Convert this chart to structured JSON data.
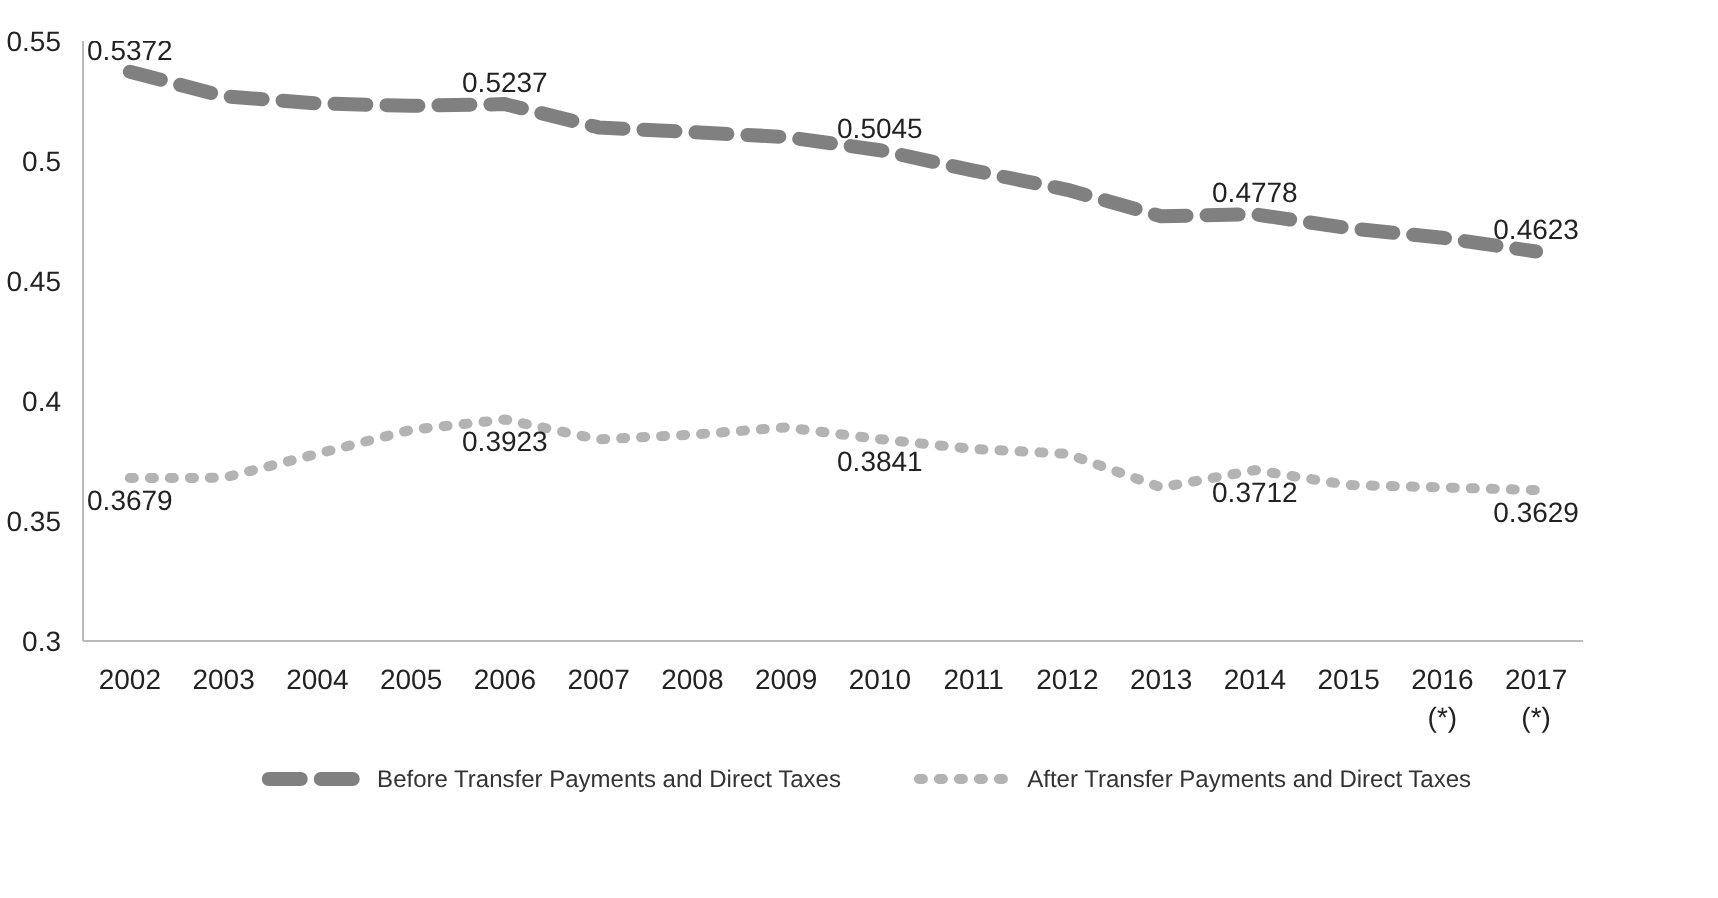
{
  "chart_data": {
    "type": "line",
    "categories": [
      "2002",
      "2003",
      "2004",
      "2005",
      "2006",
      "2007",
      "2008",
      "2009",
      "2010",
      "2011",
      "2012",
      "2013",
      "2014",
      "2015",
      "2016\n(*)",
      "2017\n(*)"
    ],
    "ylim": [
      0.3,
      0.55
    ],
    "yticks": [
      0.3,
      0.35,
      0.4,
      0.45,
      0.5,
      0.55
    ],
    "grid": false,
    "legend": "bottom",
    "series": [
      {
        "name": "Before Transfer Payments and Direct Taxes",
        "color": "#808080",
        "line_style": "dashed",
        "values": [
          0.5372,
          0.527,
          0.524,
          0.523,
          0.5237,
          0.514,
          0.512,
          0.51,
          0.5045,
          0.496,
          0.488,
          0.477,
          0.4778,
          0.472,
          0.468,
          0.4623
        ],
        "value_labels": [
          "0.5372",
          null,
          null,
          null,
          "0.5237",
          null,
          null,
          null,
          "0.5045",
          null,
          null,
          null,
          "0.4778",
          null,
          null,
          "0.4623"
        ]
      },
      {
        "name": "After Transfer Payments and Direct Taxes",
        "color": "#b3b3b3",
        "line_style": "dotted",
        "values": [
          0.3679,
          0.368,
          0.378,
          0.388,
          0.3923,
          0.384,
          0.386,
          0.389,
          0.3841,
          0.38,
          0.378,
          0.364,
          0.3712,
          0.365,
          0.364,
          0.3629
        ],
        "value_labels": [
          "0.3679",
          null,
          null,
          null,
          "0.3923",
          null,
          null,
          null,
          "0.3841",
          null,
          null,
          null,
          "0.3712",
          null,
          null,
          "0.3629"
        ]
      }
    ]
  }
}
